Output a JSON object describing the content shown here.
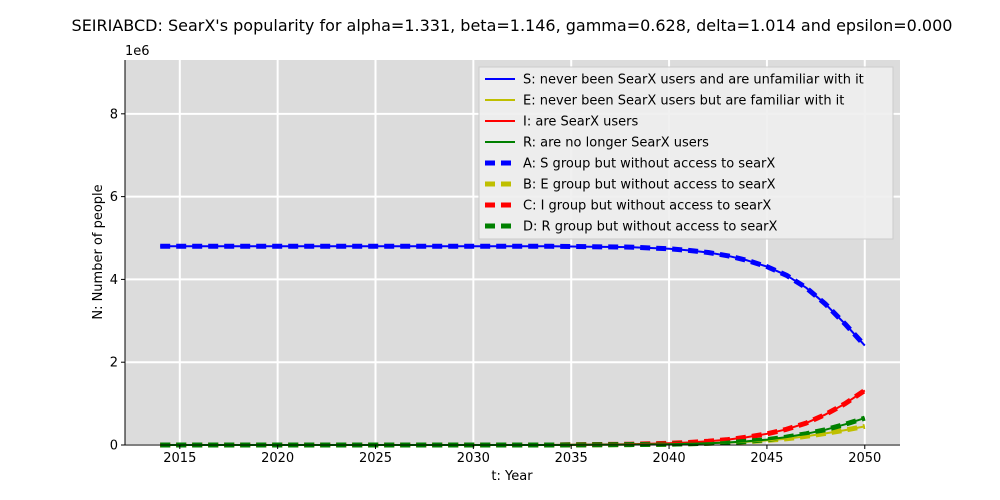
{
  "chart_data": {
    "type": "line",
    "title": "SEIRIABCD: SearX's popularity for alpha=1.331, beta=1.146, gamma=0.628, delta=1.014 and epsilon=0.000",
    "xlabel": "t: Year",
    "ylabel": "N: Number of people",
    "y_scale_label": "1e6",
    "xlim": [
      2012.2,
      2051.8
    ],
    "ylim": [
      0,
      9.3
    ],
    "x_ticks": [
      2015,
      2020,
      2025,
      2030,
      2035,
      2040,
      2045,
      2050
    ],
    "y_ticks": [
      0,
      2,
      4,
      6,
      8
    ],
    "grid": true,
    "legend_position": "top-right",
    "x": [
      2014,
      2016,
      2018,
      2020,
      2022,
      2024,
      2026,
      2028,
      2030,
      2032,
      2034,
      2036,
      2038,
      2040,
      2041,
      2042,
      2043,
      2044,
      2045,
      2046,
      2047,
      2048,
      2049,
      2050
    ],
    "series": [
      {
        "name": "S: never been SearX users and are unfamiliar with it",
        "color": "#0000ff",
        "style": "solid",
        "values": [
          4.8,
          4.8,
          4.8,
          4.8,
          4.8,
          4.8,
          4.8,
          4.8,
          4.8,
          4.8,
          4.8,
          4.79,
          4.78,
          4.74,
          4.7,
          4.65,
          4.57,
          4.46,
          4.31,
          4.1,
          3.8,
          3.4,
          2.92,
          2.4
        ]
      },
      {
        "name": "E: never been SearX users but are familiar with it",
        "color": "#bfbf00",
        "style": "solid",
        "values": [
          0,
          0,
          0,
          0,
          0,
          0,
          0,
          0,
          0,
          0,
          0,
          0.005,
          0.01,
          0.02,
          0.03,
          0.04,
          0.06,
          0.08,
          0.11,
          0.15,
          0.21,
          0.28,
          0.36,
          0.45
        ]
      },
      {
        "name": "I: are SearX users",
        "color": "#ff0000",
        "style": "solid",
        "values": [
          0,
          0,
          0,
          0,
          0,
          0,
          0,
          0,
          0,
          0,
          0,
          0.01,
          0.02,
          0.04,
          0.06,
          0.09,
          0.13,
          0.19,
          0.27,
          0.38,
          0.53,
          0.74,
          1.0,
          1.32
        ]
      },
      {
        "name": "R: are no longer SearX users",
        "color": "#008000",
        "style": "solid",
        "values": [
          0,
          0,
          0,
          0,
          0,
          0,
          0,
          0,
          0,
          0,
          0,
          0.005,
          0.01,
          0.02,
          0.03,
          0.04,
          0.06,
          0.09,
          0.13,
          0.19,
          0.27,
          0.37,
          0.5,
          0.65
        ]
      },
      {
        "name": "A: S group but without access to searX",
        "color": "#0000ff",
        "style": "dashed",
        "values": [
          4.8,
          4.8,
          4.8,
          4.8,
          4.8,
          4.8,
          4.8,
          4.8,
          4.8,
          4.8,
          4.8,
          4.79,
          4.78,
          4.74,
          4.7,
          4.65,
          4.57,
          4.46,
          4.31,
          4.1,
          3.8,
          3.4,
          2.92,
          2.4
        ]
      },
      {
        "name": "B: E group but without access to searX",
        "color": "#bfbf00",
        "style": "dashed",
        "values": [
          0,
          0,
          0,
          0,
          0,
          0,
          0,
          0,
          0,
          0,
          0,
          0.005,
          0.01,
          0.02,
          0.03,
          0.04,
          0.06,
          0.08,
          0.11,
          0.15,
          0.21,
          0.28,
          0.36,
          0.45
        ]
      },
      {
        "name": "C: I group but without access to searX",
        "color": "#ff0000",
        "style": "dashed",
        "values": [
          0,
          0,
          0,
          0,
          0,
          0,
          0,
          0,
          0,
          0,
          0,
          0.01,
          0.02,
          0.04,
          0.06,
          0.09,
          0.13,
          0.19,
          0.27,
          0.38,
          0.53,
          0.74,
          1.0,
          1.32
        ]
      },
      {
        "name": "D: R group but without access to searX",
        "color": "#008000",
        "style": "dashed",
        "values": [
          0,
          0,
          0,
          0,
          0,
          0,
          0,
          0,
          0,
          0,
          0,
          0.005,
          0.01,
          0.02,
          0.03,
          0.04,
          0.06,
          0.09,
          0.13,
          0.19,
          0.27,
          0.37,
          0.5,
          0.65
        ]
      }
    ]
  }
}
